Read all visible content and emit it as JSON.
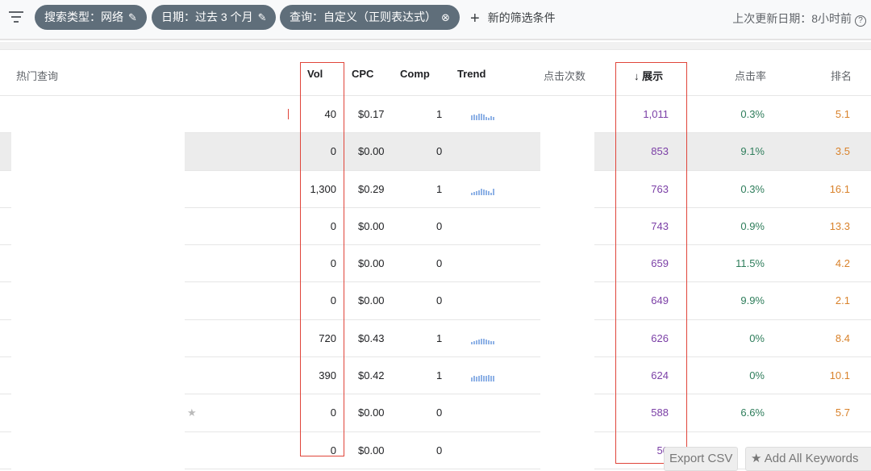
{
  "filters": {
    "chips": [
      {
        "label": "搜索类型：网络",
        "icon": "pencil-icon"
      },
      {
        "label": "日期：过去 3 个月",
        "icon": "pencil-icon"
      },
      {
        "label": "查询：自定义（正则表达式）",
        "icon": "close-circle-icon"
      }
    ],
    "new_filter": "新的筛选条件",
    "last_updated": "上次更新日期：8小时前",
    "help": "?"
  },
  "columns": {
    "query": "热门查询",
    "vol": "Vol",
    "cpc": "CPC",
    "comp": "Comp",
    "trend": "Trend",
    "clicks": "点击次数",
    "impressions": "展示",
    "sort_arrow": "↓",
    "ctr": "点击率",
    "position": "排名"
  },
  "rows": [
    {
      "vol": "40",
      "cpc": "$0.17",
      "comp": "1",
      "trend": [
        6,
        7,
        6,
        8,
        8,
        7,
        4,
        3,
        5,
        4
      ],
      "impressions": "1,011",
      "ctr": "0.3%",
      "position": "5.1"
    },
    {
      "vol": "0",
      "cpc": "$0.00",
      "comp": "0",
      "trend": null,
      "impressions": "853",
      "ctr": "9.1%",
      "position": "3.5"
    },
    {
      "vol": "1,300",
      "cpc": "$0.29",
      "comp": "1",
      "trend": [
        3,
        4,
        5,
        6,
        8,
        7,
        6,
        5,
        3,
        8
      ],
      "impressions": "763",
      "ctr": "0.3%",
      "position": "16.1"
    },
    {
      "vol": "0",
      "cpc": "$0.00",
      "comp": "0",
      "trend": null,
      "impressions": "743",
      "ctr": "0.9%",
      "position": "13.3"
    },
    {
      "vol": "0",
      "cpc": "$0.00",
      "comp": "0",
      "trend": null,
      "impressions": "659",
      "ctr": "11.5%",
      "position": "4.2"
    },
    {
      "vol": "0",
      "cpc": "$0.00",
      "comp": "0",
      "trend": null,
      "impressions": "649",
      "ctr": "9.9%",
      "position": "2.1"
    },
    {
      "vol": "720",
      "cpc": "$0.43",
      "comp": "1",
      "trend": [
        3,
        4,
        5,
        6,
        7,
        7,
        6,
        5,
        4,
        4
      ],
      "impressions": "626",
      "ctr": "0%",
      "position": "8.4"
    },
    {
      "vol": "390",
      "cpc": "$0.42",
      "comp": "1",
      "trend": [
        5,
        7,
        6,
        7,
        8,
        7,
        7,
        8,
        7,
        7
      ],
      "impressions": "624",
      "ctr": "0%",
      "position": "10.1"
    },
    {
      "vol": "0",
      "cpc": "$0.00",
      "comp": "0",
      "trend": null,
      "impressions": "588",
      "ctr": "6.6%",
      "position": "5.7",
      "star": "★"
    },
    {
      "vol": "0",
      "cpc": "$0.00",
      "comp": "0",
      "trend": null,
      "impressions": "50",
      "ctr": "",
      "position": ""
    }
  ],
  "buttons": {
    "export": "Export CSV",
    "add_all": "★ Add All Keywords"
  },
  "colors": {
    "impressions": "#7b3fa6",
    "ctr": "#2e7d5b",
    "position": "#d9822b",
    "highlight_box": "#e0453a",
    "chip": "#5f6e7a"
  }
}
